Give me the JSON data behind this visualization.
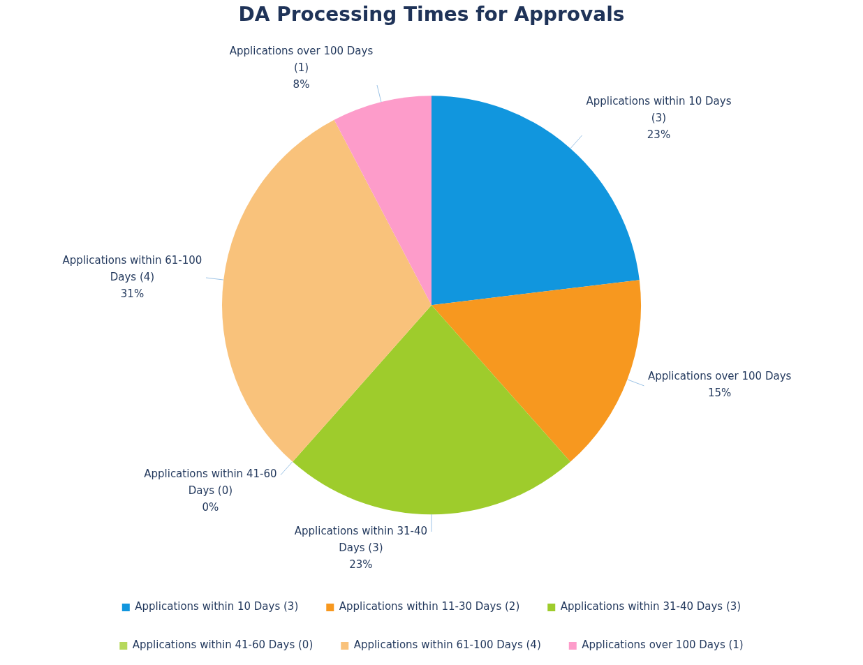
{
  "chart_data": {
    "type": "pie",
    "title": "DA Processing Times for Approvals",
    "categories": [
      "Applications within 10 Days (3)",
      "Applications within 11-30 Days (2)",
      "Applications within 31-40 Days (3)",
      "Applications within 41-60 Days (0)",
      "Applications within 61-100 Days (4)",
      "Applications over 100 Days (1)"
    ],
    "values": [
      3,
      2,
      3,
      0,
      4,
      1
    ],
    "colors": [
      "#1196de",
      "#f7981f",
      "#9ecc2c",
      "#b6d85c",
      "#f9c27b",
      "#fd9cca"
    ],
    "annotations": [
      "Applications within 10 Days\n(3)\n23%",
      "Applications over 100 Days\n15%",
      "Applications within 31-40\nDays (3)\n23%",
      "Applications within 41-60\nDays (0)\n0%",
      "Applications within 61-100\nDays (4)\n31%",
      "Applications over 100 Days\n(1)\n8%"
    ],
    "legend": "bottom"
  }
}
